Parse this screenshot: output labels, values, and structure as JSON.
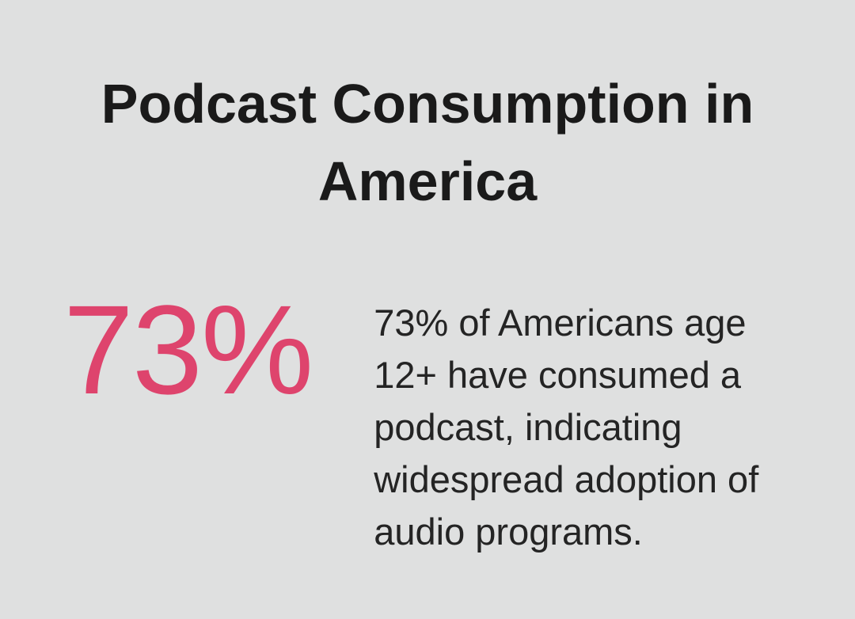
{
  "title": "Podcast Consumption in America",
  "stat": {
    "value": "73%",
    "description": "73% of Americans age 12+ have consumed a podcast, indicating widespread adoption of audio programs."
  },
  "colors": {
    "background": "#DFE0E0",
    "accent": "#DE446D",
    "title_color": "#1A1A1A",
    "body_color": "#242424"
  }
}
